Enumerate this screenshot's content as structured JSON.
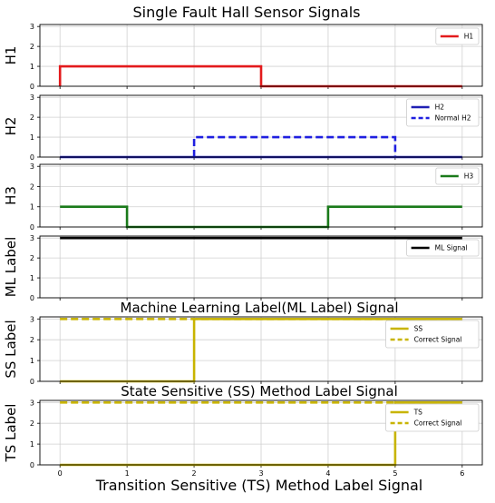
{
  "chart_data": {
    "type": "line",
    "title": "Single Fault Hall Sensor Signals",
    "xlabel": "Transition Sensitive (TS) Method Label Signal",
    "xlim": [
      -0.3,
      6.3
    ],
    "x_ticks": [
      "0",
      "1",
      "2",
      "3",
      "4",
      "5",
      "6"
    ],
    "grid": true,
    "step": true,
    "panels": [
      {
        "ylabel": "H1",
        "ylim": [
          0,
          3.1
        ],
        "y_ticks": [
          "0",
          "1",
          "2",
          "3"
        ],
        "subtitle": "",
        "legend_position": "top-right",
        "series": [
          {
            "name": "H1",
            "color": "#e31a1c",
            "dash": "solid",
            "x": [
              0,
              0,
              3,
              3,
              6
            ],
            "y": [
              0,
              1,
              1,
              0,
              0
            ]
          }
        ]
      },
      {
        "ylabel": "H2",
        "ylim": [
          0,
          3.1
        ],
        "y_ticks": [
          "0",
          "1",
          "2",
          "3"
        ],
        "subtitle": "",
        "legend_position": "top-right",
        "series": [
          {
            "name": "H2",
            "color": "#1f1fb4",
            "dash": "solid",
            "x": [
              0,
              6
            ],
            "y": [
              0,
              0
            ]
          },
          {
            "name": "Normal H2",
            "color": "#1f1fe0",
            "dash": "dashed",
            "x": [
              2,
              2,
              5,
              5
            ],
            "y": [
              0,
              1,
              1,
              0
            ]
          }
        ]
      },
      {
        "ylabel": "H3",
        "ylim": [
          0,
          3.1
        ],
        "y_ticks": [
          "0",
          "1",
          "2",
          "3"
        ],
        "subtitle": "",
        "legend_position": "top-right",
        "series": [
          {
            "name": "H3",
            "color": "#1a7a1a",
            "dash": "solid",
            "x": [
              0,
              1,
              1,
              4,
              4,
              6
            ],
            "y": [
              1,
              1,
              0,
              0,
              1,
              1
            ]
          }
        ]
      },
      {
        "ylabel": "ML Label",
        "ylim": [
          0,
          3.1
        ],
        "y_ticks": [
          "0",
          "1",
          "2",
          "3"
        ],
        "subtitle": "Machine Learning Label(ML Label) Signal",
        "legend_position": "top-right",
        "series": [
          {
            "name": "ML Signal",
            "color": "#000000",
            "dash": "solid",
            "x": [
              0,
              6
            ],
            "y": [
              3,
              3
            ]
          }
        ]
      },
      {
        "ylabel": "SS Label",
        "ylim": [
          0,
          3.1
        ],
        "y_ticks": [
          "0",
          "1",
          "2",
          "3"
        ],
        "subtitle": "State Sensitive (SS) Method Label Signal",
        "legend_position": "top-right",
        "series": [
          {
            "name": "SS",
            "color": "#c8b400",
            "dash": "solid",
            "x": [
              0,
              2,
              2,
              6
            ],
            "y": [
              0,
              0,
              3,
              3
            ]
          },
          {
            "name": "Correct Signal",
            "color": "#c8b400",
            "dash": "dashed",
            "x": [
              0,
              6
            ],
            "y": [
              3,
              3
            ]
          }
        ]
      },
      {
        "ylabel": "TS Label",
        "ylim": [
          0,
          3.1
        ],
        "y_ticks": [
          "0",
          "1",
          "2",
          "3"
        ],
        "subtitle": "",
        "legend_position": "top-right",
        "series": [
          {
            "name": "TS",
            "color": "#c8b400",
            "dash": "solid",
            "x": [
              0,
              5,
              5,
              6
            ],
            "y": [
              0,
              0,
              3,
              3
            ]
          },
          {
            "name": "Correct Signal",
            "color": "#c8b400",
            "dash": "dashed",
            "x": [
              0,
              6
            ],
            "y": [
              3,
              3
            ]
          }
        ]
      }
    ]
  }
}
